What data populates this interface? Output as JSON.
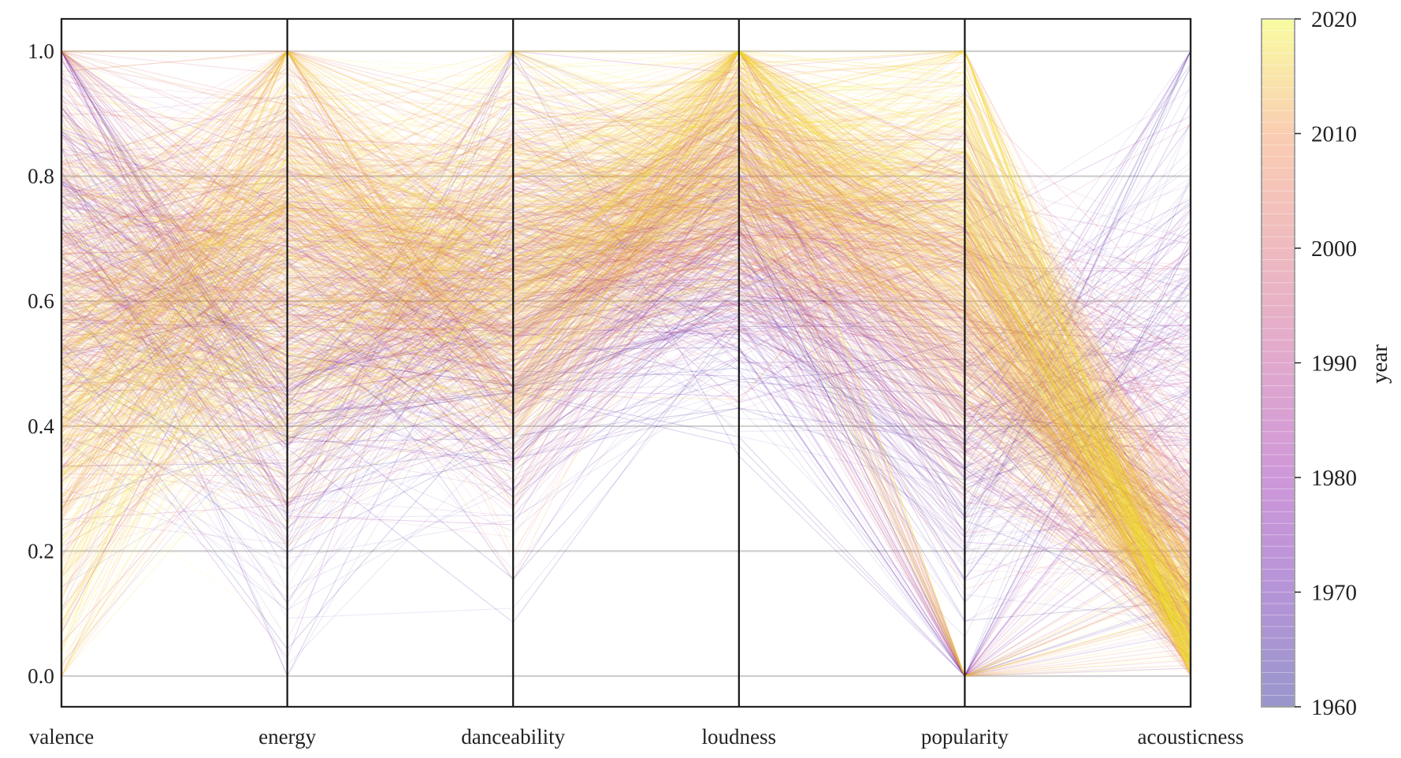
{
  "chart_data": {
    "type": "parallel_coordinates",
    "dimensions": [
      "valence",
      "energy",
      "danceability",
      "loudness",
      "popularity",
      "acousticness"
    ],
    "ylim": [
      0.0,
      1.0
    ],
    "yticks": [
      0.0,
      0.2,
      0.4,
      0.6,
      0.8,
      1.0
    ],
    "ytick_labels": [
      "0.0",
      "0.2",
      "0.4",
      "0.6",
      "0.8",
      "1.0"
    ],
    "grid": true,
    "colorbar": {
      "label": "year",
      "range": [
        1960,
        2020
      ],
      "ticks": [
        1960,
        1970,
        1980,
        1990,
        2000,
        2010,
        2020
      ],
      "colormap": "plasma"
    },
    "representative_profiles": [
      {
        "year": 1960,
        "values": [
          0.62,
          0.38,
          0.5,
          0.58,
          0.3,
          0.72
        ]
      },
      {
        "year": 1970,
        "values": [
          0.72,
          0.5,
          0.56,
          0.66,
          0.42,
          0.45
        ]
      },
      {
        "year": 1980,
        "values": [
          0.65,
          0.62,
          0.6,
          0.74,
          0.55,
          0.22
        ]
      },
      {
        "year": 1990,
        "values": [
          0.55,
          0.66,
          0.65,
          0.8,
          0.62,
          0.14
        ]
      },
      {
        "year": 2000,
        "values": [
          0.52,
          0.72,
          0.63,
          0.84,
          0.66,
          0.09
        ]
      },
      {
        "year": 2010,
        "values": [
          0.48,
          0.72,
          0.66,
          0.87,
          0.7,
          0.06
        ]
      },
      {
        "year": 2020,
        "values": [
          0.45,
          0.64,
          0.7,
          0.85,
          0.74,
          0.05
        ]
      }
    ]
  }
}
